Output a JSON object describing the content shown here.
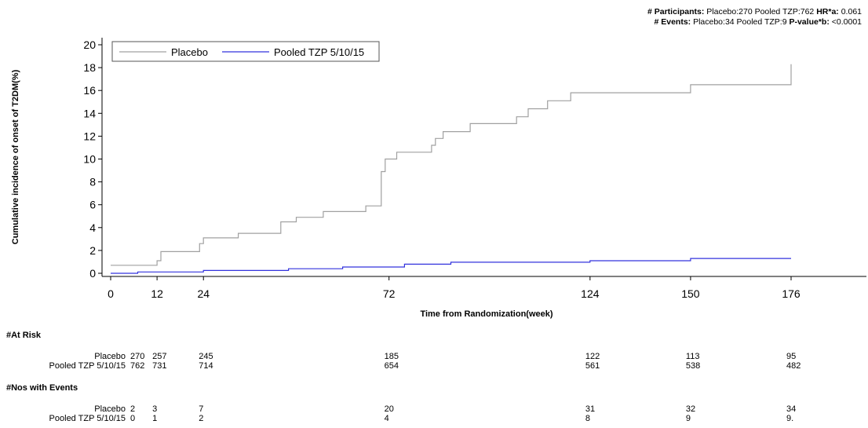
{
  "stats": {
    "participants_label": "# Participants:",
    "participants_text": "Placebo:270 Pooled TZP:762",
    "hr_label": "HR*a:",
    "hr_value": "0.061",
    "events_label": "# Events:",
    "events_text": "Placebo:34 Pooled TZP:9",
    "p_label": "P-value*b:",
    "p_value": "<0.0001"
  },
  "chart_data": {
    "type": "line",
    "xlabel": "Time from Randomization(week)",
    "ylabel": "Cumulative incidence of onset of T2DM(%)",
    "xlim": [
      0,
      190
    ],
    "ylim": [
      0,
      20
    ],
    "x_ticks": [
      0,
      12,
      24,
      72,
      124,
      150,
      176
    ],
    "y_ticks": [
      0,
      2,
      4,
      6,
      8,
      10,
      12,
      14,
      16,
      18,
      20
    ],
    "legend_position": "top-left",
    "series": [
      {
        "name": "Placebo",
        "color": "#a0a0a0",
        "points": [
          [
            0,
            0.7
          ],
          [
            12,
            0.7
          ],
          [
            12,
            1.1
          ],
          [
            13,
            1.1
          ],
          [
            13,
            1.9
          ],
          [
            23,
            1.9
          ],
          [
            23,
            2.6
          ],
          [
            24,
            2.6
          ],
          [
            24,
            3.1
          ],
          [
            33,
            3.1
          ],
          [
            33,
            3.5
          ],
          [
            44,
            3.5
          ],
          [
            44,
            4.5
          ],
          [
            48,
            4.5
          ],
          [
            48,
            4.9
          ],
          [
            55,
            4.9
          ],
          [
            55,
            5.4
          ],
          [
            66,
            5.4
          ],
          [
            66,
            5.9
          ],
          [
            70,
            5.9
          ],
          [
            70,
            8.9
          ],
          [
            71,
            8.9
          ],
          [
            71,
            10.0
          ],
          [
            74,
            10.0
          ],
          [
            74,
            10.6
          ],
          [
            83,
            10.6
          ],
          [
            83,
            11.2
          ],
          [
            84,
            11.2
          ],
          [
            84,
            11.8
          ],
          [
            86,
            11.8
          ],
          [
            86,
            12.4
          ],
          [
            93,
            12.4
          ],
          [
            93,
            13.1
          ],
          [
            105,
            13.1
          ],
          [
            105,
            13.7
          ],
          [
            108,
            13.7
          ],
          [
            108,
            14.4
          ],
          [
            113,
            14.4
          ],
          [
            113,
            15.1
          ],
          [
            119,
            15.1
          ],
          [
            119,
            15.8
          ],
          [
            150,
            15.8
          ],
          [
            150,
            16.5
          ],
          [
            176,
            16.5
          ],
          [
            176,
            18.3
          ]
        ]
      },
      {
        "name": "Pooled TZP 5/10/15",
        "color": "#3333dd",
        "points": [
          [
            0,
            0
          ],
          [
            7,
            0
          ],
          [
            7,
            0.12
          ],
          [
            24,
            0.12
          ],
          [
            24,
            0.25
          ],
          [
            46,
            0.25
          ],
          [
            46,
            0.4
          ],
          [
            60,
            0.4
          ],
          [
            60,
            0.55
          ],
          [
            76,
            0.55
          ],
          [
            76,
            0.8
          ],
          [
            88,
            0.8
          ],
          [
            88,
            0.97
          ],
          [
            124,
            0.97
          ],
          [
            124,
            1.1
          ],
          [
            150,
            1.1
          ],
          [
            150,
            1.3
          ],
          [
            176,
            1.3
          ]
        ]
      }
    ]
  },
  "at_risk": {
    "header": "#At Risk",
    "columns": [
      0,
      12,
      24,
      72,
      124,
      150,
      176
    ],
    "rows": [
      {
        "label": "Placebo",
        "values": [
          "270",
          "257",
          "245",
          "185",
          "122",
          "113",
          "95"
        ]
      },
      {
        "label": "Pooled TZP 5/10/15",
        "values": [
          "762",
          "731",
          "714",
          "654",
          "561",
          "538",
          "482"
        ]
      }
    ]
  },
  "events_table": {
    "header": "#Nos with Events",
    "rows": [
      {
        "label": "Placebo",
        "values": [
          "2",
          "3",
          "7",
          "20",
          "31",
          "32",
          "34"
        ]
      },
      {
        "label": "Pooled TZP 5/10/15",
        "values": [
          "0",
          "1",
          "2",
          "4",
          "8",
          "9",
          "9."
        ]
      }
    ]
  }
}
